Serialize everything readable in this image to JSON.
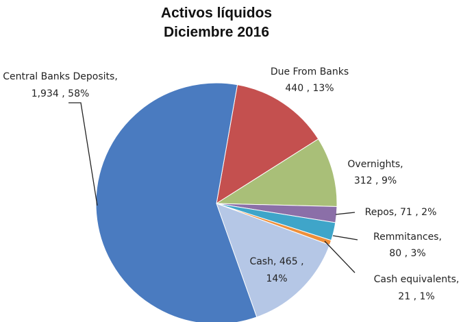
{
  "chart_data": {
    "type": "pie",
    "title_lines": [
      "Activos líquidos",
      "Diciembre 2016"
    ],
    "categories": [
      "Due From Banks",
      "Overnights",
      "Repos",
      "Remmitances",
      "Cash equivalents",
      "Cash",
      "Central Banks Deposits"
    ],
    "values": [
      440,
      312,
      71,
      80,
      21,
      465,
      1934
    ],
    "value_labels": [
      "440",
      "312",
      "71",
      "80",
      "21",
      "465",
      "1,934"
    ],
    "percents": [
      13,
      9,
      2,
      3,
      1,
      14,
      58
    ],
    "percent_labels": [
      "13%",
      "9%",
      "2%",
      "3%",
      "1%",
      "14%",
      "58%"
    ],
    "colors": [
      "#c4504f",
      "#a9bf78",
      "#8b6fa8",
      "#3fa5c9",
      "#ef8f3a",
      "#b5c7e6",
      "#4a7bc0"
    ]
  }
}
